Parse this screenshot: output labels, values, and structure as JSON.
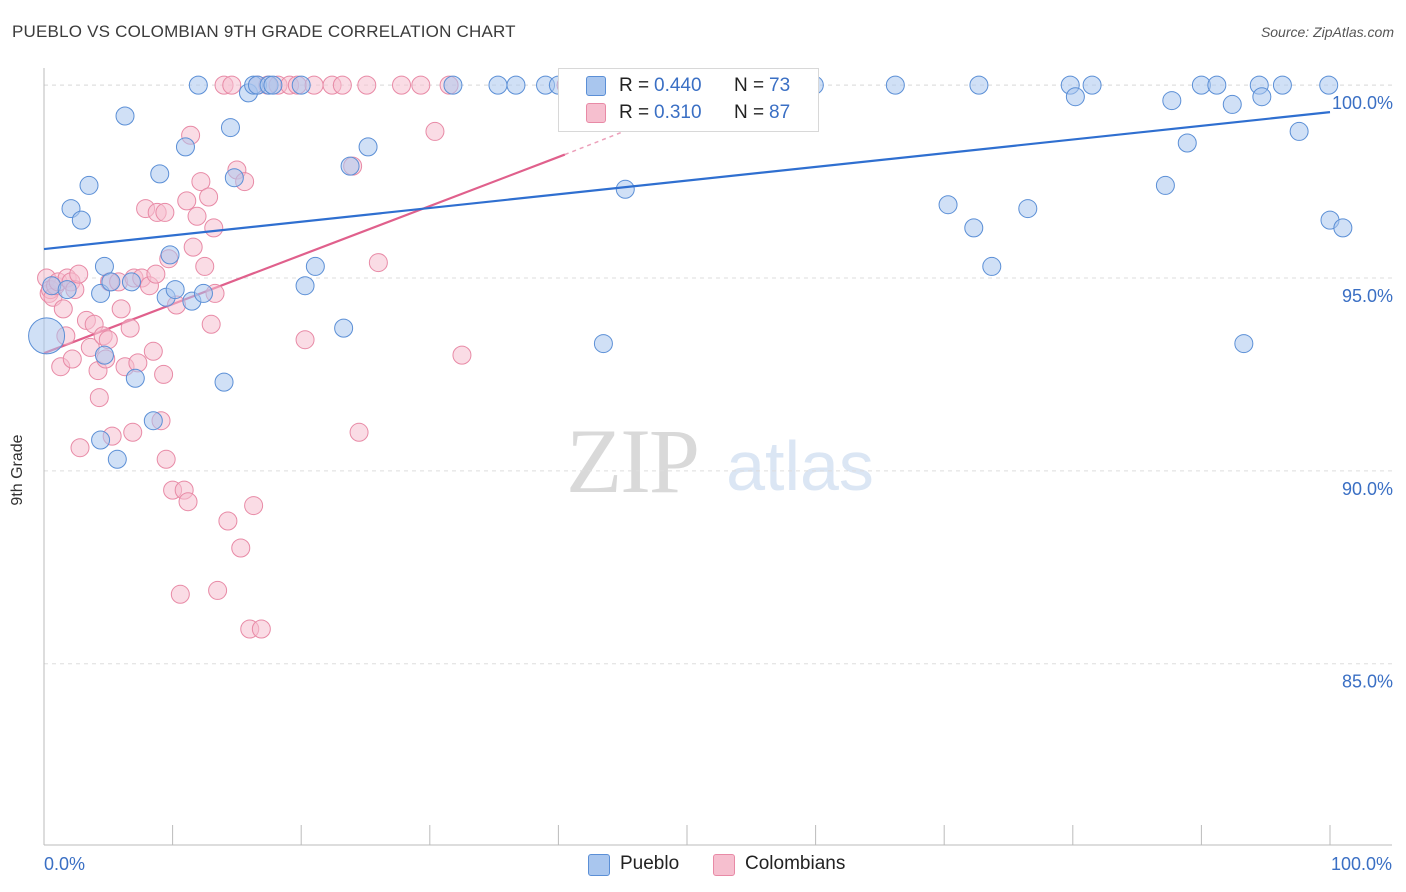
{
  "title": "PUEBLO VS COLOMBIAN 9TH GRADE CORRELATION CHART",
  "source": "Source: ZipAtlas.com",
  "watermark": {
    "zip": "ZIP",
    "atlas": "atlas"
  },
  "colors": {
    "pueblo_fill": "#a9c6ee",
    "pueblo_stroke": "#5b8fd6",
    "pueblo_line": "#2f6fd0",
    "colombian_fill": "#f6bfcf",
    "colombian_stroke": "#e88aa6",
    "colombian_line": "#e0608c",
    "tick_label": "#3a6fc4",
    "grid": "#dddddd"
  },
  "legend": {
    "rows": [
      {
        "r_label": "R =",
        "r_value": "0.440",
        "n_label": "N =",
        "n_value": "73"
      },
      {
        "r_label": "R =",
        "r_value": "0.310",
        "n_label": "N =",
        "n_value": "87"
      }
    ]
  },
  "bottom_legend": {
    "items": [
      "Pueblo",
      "Colombians"
    ]
  },
  "chart_data": {
    "type": "scatter",
    "title": "PUEBLO VS COLOMBIAN 9TH GRADE CORRELATION CHART",
    "xlabel": "",
    "ylabel": "9th Grade",
    "xlim": [
      0,
      100
    ],
    "ylim": [
      80.3,
      100.6
    ],
    "x_tick_labels": [
      {
        "value": 0,
        "label": "0.0%"
      },
      {
        "value": 100,
        "label": "100.0%"
      }
    ],
    "y_ticks": [
      {
        "value": 100,
        "label": "100.0%"
      },
      {
        "value": 95,
        "label": "95.0%"
      },
      {
        "value": 90,
        "label": "90.0%"
      },
      {
        "value": 85,
        "label": "85.0%"
      }
    ],
    "x_minor_ticks": [
      0,
      10,
      20,
      30,
      40,
      50,
      60,
      70,
      80,
      90,
      100
    ],
    "grid": true,
    "series": [
      {
        "name": "Pueblo",
        "trend": {
          "x": [
            0,
            100
          ],
          "y": [
            95.75,
            99.3
          ]
        },
        "points": [
          [
            0.2,
            93.5
          ],
          [
            0.6,
            94.8
          ],
          [
            1.8,
            94.7
          ],
          [
            2.1,
            96.8
          ],
          [
            2.9,
            96.5
          ],
          [
            3.5,
            97.4
          ],
          [
            4.4,
            90.8
          ],
          [
            4.4,
            94.6
          ],
          [
            4.7,
            93.0
          ],
          [
            4.7,
            95.3
          ],
          [
            5.2,
            94.9
          ],
          [
            5.7,
            90.3
          ],
          [
            6.3,
            99.2
          ],
          [
            6.8,
            94.9
          ],
          [
            7.1,
            92.4
          ],
          [
            8.5,
            91.3
          ],
          [
            9.0,
            97.7
          ],
          [
            9.5,
            94.5
          ],
          [
            9.8,
            95.6
          ],
          [
            10.2,
            94.7
          ],
          [
            11.0,
            98.4
          ],
          [
            11.5,
            94.4
          ],
          [
            12.0,
            100.0
          ],
          [
            12.4,
            94.6
          ],
          [
            14.0,
            92.3
          ],
          [
            14.5,
            98.9
          ],
          [
            14.8,
            97.6
          ],
          [
            15.9,
            99.8
          ],
          [
            16.3,
            100.0
          ],
          [
            16.6,
            100.0
          ],
          [
            17.5,
            100.0
          ],
          [
            17.8,
            100.0
          ],
          [
            20.0,
            100.0
          ],
          [
            20.3,
            94.8
          ],
          [
            21.1,
            95.3
          ],
          [
            23.3,
            93.7
          ],
          [
            23.8,
            97.9
          ],
          [
            25.2,
            98.4
          ],
          [
            31.8,
            100.0
          ],
          [
            35.3,
            100.0
          ],
          [
            36.7,
            100.0
          ],
          [
            39.0,
            100.0
          ],
          [
            40.0,
            100.0
          ],
          [
            41.5,
            100.0
          ],
          [
            42.3,
            100.0
          ],
          [
            43.5,
            93.3
          ],
          [
            45.2,
            97.3
          ],
          [
            47.5,
            100.0
          ],
          [
            48.5,
            100.0
          ],
          [
            59.9,
            100.0
          ],
          [
            66.2,
            100.0
          ],
          [
            70.3,
            96.9
          ],
          [
            72.3,
            96.3
          ],
          [
            72.7,
            100.0
          ],
          [
            73.7,
            95.3
          ],
          [
            76.5,
            96.8
          ],
          [
            79.8,
            100.0
          ],
          [
            80.2,
            99.7
          ],
          [
            81.5,
            100.0
          ],
          [
            87.2,
            97.4
          ],
          [
            87.7,
            99.6
          ],
          [
            88.9,
            98.5
          ],
          [
            90.0,
            100.0
          ],
          [
            91.2,
            100.0
          ],
          [
            92.4,
            99.5
          ],
          [
            93.3,
            93.3
          ],
          [
            94.5,
            100.0
          ],
          [
            94.7,
            99.7
          ],
          [
            96.3,
            100.0
          ],
          [
            97.6,
            98.8
          ],
          [
            99.9,
            100.0
          ],
          [
            100.0,
            96.5
          ],
          [
            101.0,
            96.3
          ]
        ]
      },
      {
        "name": "Colombians",
        "trend": {
          "x": [
            0,
            40.5
          ],
          "y": [
            93.05,
            98.2
          ]
        },
        "trend_dashed": {
          "x": [
            40.5,
            47
          ],
          "y": [
            98.2,
            99.05
          ]
        },
        "points": [
          [
            0.2,
            95.0
          ],
          [
            0.4,
            94.6
          ],
          [
            0.5,
            94.7
          ],
          [
            0.7,
            94.5
          ],
          [
            0.9,
            94.8
          ],
          [
            1.1,
            94.9
          ],
          [
            1.3,
            92.7
          ],
          [
            1.5,
            94.2
          ],
          [
            1.7,
            93.5
          ],
          [
            1.8,
            95.0
          ],
          [
            2.1,
            94.9
          ],
          [
            2.4,
            94.7
          ],
          [
            2.7,
            95.1
          ],
          [
            2.8,
            90.6
          ],
          [
            3.3,
            93.9
          ],
          [
            3.6,
            93.2
          ],
          [
            3.9,
            93.8
          ],
          [
            4.2,
            92.6
          ],
          [
            4.3,
            91.9
          ],
          [
            4.6,
            93.5
          ],
          [
            4.8,
            92.9
          ],
          [
            5.1,
            94.9
          ],
          [
            5.3,
            90.9
          ],
          [
            5.8,
            94.9
          ],
          [
            6.0,
            94.2
          ],
          [
            6.3,
            92.7
          ],
          [
            6.7,
            93.7
          ],
          [
            6.9,
            91.0
          ],
          [
            7.0,
            95.0
          ],
          [
            7.3,
            92.8
          ],
          [
            7.6,
            95.0
          ],
          [
            7.9,
            96.8
          ],
          [
            8.2,
            94.8
          ],
          [
            8.5,
            93.1
          ],
          [
            8.7,
            95.1
          ],
          [
            8.8,
            96.7
          ],
          [
            9.1,
            91.3
          ],
          [
            9.3,
            92.5
          ],
          [
            9.5,
            90.3
          ],
          [
            9.7,
            95.5
          ],
          [
            10.0,
            89.5
          ],
          [
            10.3,
            94.3
          ],
          [
            10.6,
            86.8
          ],
          [
            10.9,
            89.5
          ],
          [
            11.1,
            97.0
          ],
          [
            11.4,
            98.7
          ],
          [
            11.6,
            95.8
          ],
          [
            11.9,
            96.6
          ],
          [
            12.2,
            97.5
          ],
          [
            12.5,
            95.3
          ],
          [
            12.8,
            97.1
          ],
          [
            13.0,
            93.8
          ],
          [
            13.2,
            96.3
          ],
          [
            13.5,
            86.9
          ],
          [
            14.0,
            100.0
          ],
          [
            14.3,
            88.7
          ],
          [
            14.6,
            100.0
          ],
          [
            15.0,
            97.8
          ],
          [
            15.3,
            88.0
          ],
          [
            15.6,
            97.5
          ],
          [
            16.0,
            85.9
          ],
          [
            16.3,
            89.1
          ],
          [
            16.6,
            100.0
          ],
          [
            16.9,
            85.9
          ],
          [
            17.4,
            100.0
          ],
          [
            18.2,
            100.0
          ],
          [
            19.1,
            100.0
          ],
          [
            19.7,
            100.0
          ],
          [
            20.3,
            93.4
          ],
          [
            21.0,
            100.0
          ],
          [
            22.4,
            100.0
          ],
          [
            23.2,
            100.0
          ],
          [
            24.0,
            97.9
          ],
          [
            24.5,
            91.0
          ],
          [
            25.1,
            100.0
          ],
          [
            26.0,
            95.4
          ],
          [
            27.8,
            100.0
          ],
          [
            29.3,
            100.0
          ],
          [
            30.4,
            98.8
          ],
          [
            31.5,
            100.0
          ],
          [
            32.5,
            93.0
          ],
          [
            40.6,
            100.0
          ],
          [
            11.2,
            89.2
          ],
          [
            13.3,
            94.6
          ],
          [
            9.4,
            96.7
          ],
          [
            5.0,
            93.4
          ],
          [
            2.2,
            92.9
          ]
        ]
      }
    ]
  }
}
